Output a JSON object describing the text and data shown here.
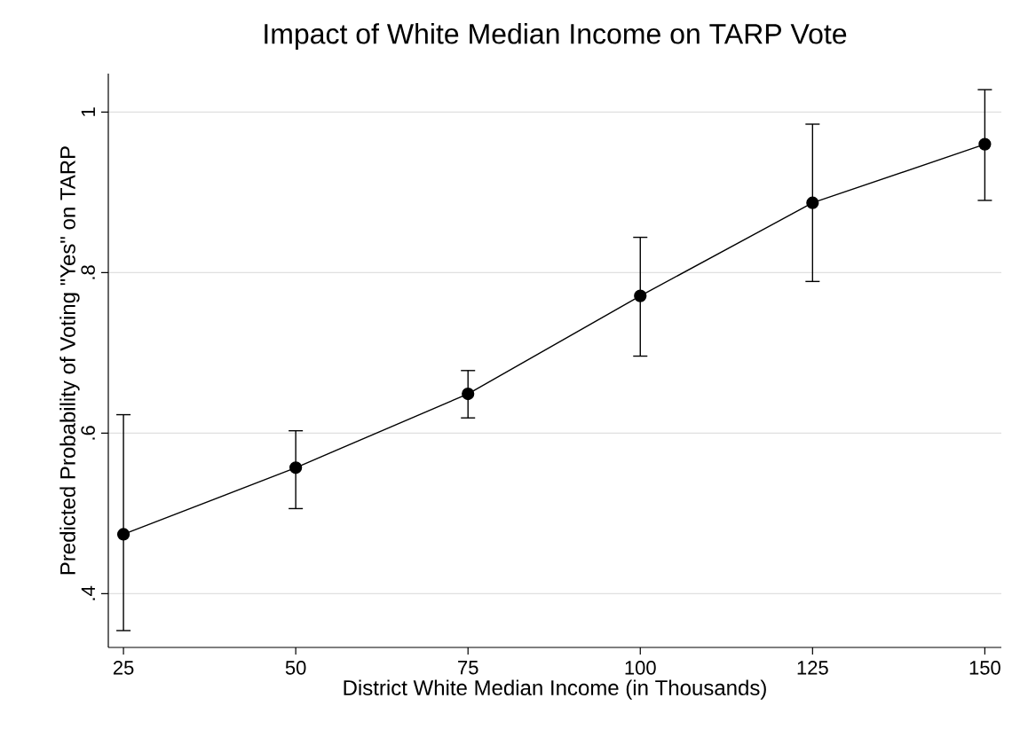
{
  "chart_data": {
    "type": "line",
    "title": "Impact of White Median Income on TARP Vote",
    "xlabel": "District White Median Income (in Thousands)",
    "ylabel": "Predicted Probability of Voting \"Yes\" on TARP",
    "x": [
      25,
      50,
      75,
      100,
      125,
      150
    ],
    "values": [
      0.474,
      0.557,
      0.649,
      0.771,
      0.887,
      0.96
    ],
    "errors": [
      [
        0.354,
        0.623
      ],
      [
        0.506,
        0.603
      ],
      [
        0.619,
        0.678
      ],
      [
        0.696,
        0.844
      ],
      [
        0.789,
        0.985
      ],
      [
        0.89,
        1.028
      ]
    ],
    "color": "#000000",
    "marker": "circle",
    "line_style": "solid",
    "grid": "y",
    "xlim": [
      22.8,
      152.4
    ],
    "ylim": [
      0.333,
      1.048
    ],
    "xticks": [
      25,
      50,
      75,
      100,
      125,
      150
    ],
    "yticks": [
      {
        "value": 0.4,
        "label": ".4"
      },
      {
        "value": 0.6,
        "label": ".6"
      },
      {
        "value": 0.8,
        "label": ".8"
      },
      {
        "value": 1,
        "label": "1"
      }
    ]
  }
}
